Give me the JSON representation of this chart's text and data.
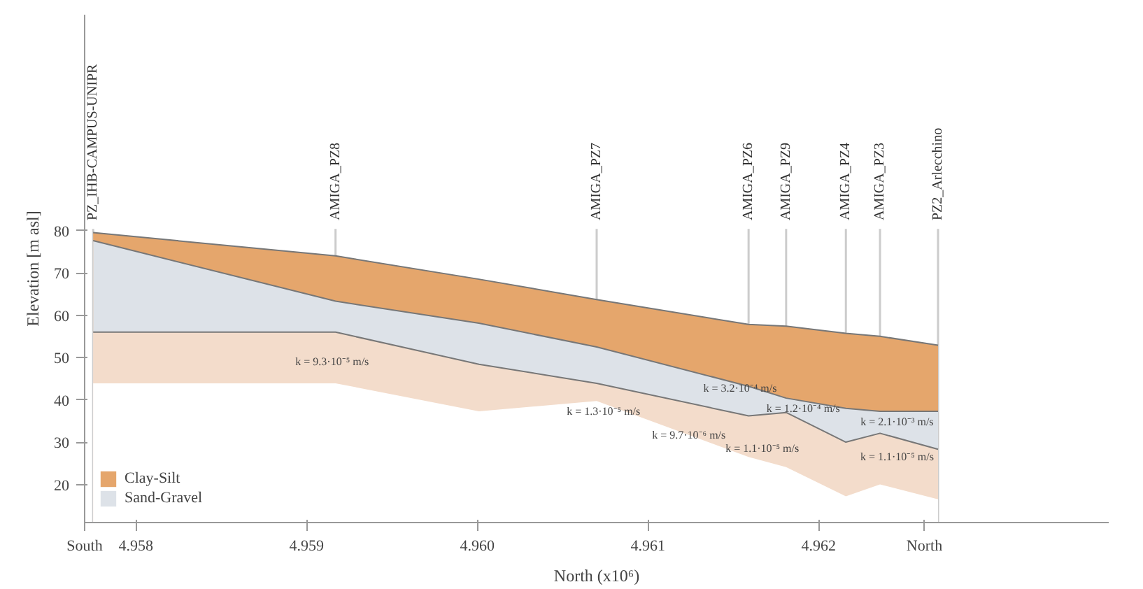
{
  "chart_data": {
    "type": "area",
    "xlabel": "North (x10⁶)",
    "ylabel": "Elevation [m asl]",
    "x": [
      4.95775,
      4.95917,
      4.96001,
      4.9607,
      4.96159,
      4.96181,
      4.96216,
      4.96236,
      4.9627
    ],
    "series": [
      {
        "name": "Clay-Silt",
        "color": "#e5a66c",
        "values": [
          79.5,
          74,
          68.5,
          63.7,
          57.8,
          57.4,
          55.7,
          55,
          52.9
        ]
      },
      {
        "name": "Sand-Gravel",
        "color": "#dde2e8",
        "values": [
          77.6,
          63.3,
          58.1,
          52.5,
          43.2,
          40.4,
          38,
          37.3,
          37.3
        ]
      },
      {
        "color": "#f3dccb",
        "values": [
          56,
          56,
          48.4,
          43.9,
          36.2,
          37,
          30,
          32.1,
          28.3
        ]
      },
      {
        "color": "#ffffff",
        "values": [
          43.9,
          43.9,
          37.3,
          39.7,
          26.5,
          24.1,
          17.2,
          20,
          16.5
        ]
      }
    ],
    "xlim": [
      4.9577,
      4.9637
    ],
    "ylim": [
      11,
      131
    ],
    "xticks": [
      {
        "value": 4.9577,
        "label": "South"
      },
      4.958,
      4.959,
      {
        "value": 4.96,
        "label": "4.960"
      },
      4.961,
      4.962,
      {
        "value": 4.96262,
        "label": "North"
      }
    ],
    "yticks": [
      20,
      30,
      40,
      50,
      60,
      70,
      80
    ],
    "ref_lines": [
      {
        "axis": "x",
        "value": 4.95775,
        "label": "PZ_IHB-CAMPUS-UNIPR"
      },
      {
        "axis": "x",
        "value": 4.95917,
        "label": "AMIGA_PZ8"
      },
      {
        "axis": "x",
        "value": 4.9607,
        "label": "AMIGA_PZ7"
      },
      {
        "axis": "x",
        "value": 4.96159,
        "label": "AMIGA_PZ6"
      },
      {
        "axis": "x",
        "value": 4.96181,
        "label": "AMIGA_PZ9"
      },
      {
        "axis": "x",
        "value": 4.96216,
        "label": "AMIGA_PZ4"
      },
      {
        "axis": "x",
        "value": 4.96236,
        "label": "AMIGA_PZ3"
      },
      {
        "axis": "x",
        "value": 4.9627,
        "label": "PZ2_Arlecchino"
      }
    ],
    "annotations": [
      "k = 9.3·10⁻⁵ m/s",
      "k = 1.3·10⁻⁵ m/s",
      "k = 9.7·10⁻⁶ m/s",
      "k = 1.1·10⁻⁵ m/s",
      "k = 3.2·10⁻⁴ m/s",
      "k = 1.2·10⁻⁴ m/s",
      "k = 2.1·10⁻³ m/s",
      "k = 1.1·10⁻⁵ m/s"
    ],
    "grid": false,
    "legend": "bottom left"
  }
}
